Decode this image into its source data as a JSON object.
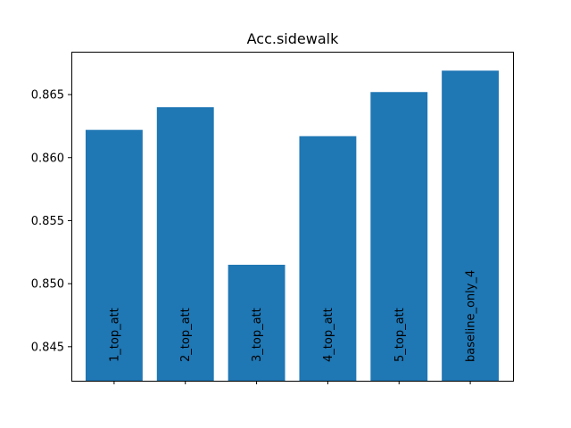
{
  "chart_data": {
    "type": "bar",
    "title": "Acc.sidewalk",
    "xlabel": "",
    "ylabel": "",
    "categories": [
      "1_top_att",
      "2_top_att",
      "3_top_att",
      "4_top_att",
      "5_top_att",
      "baseline_only_4"
    ],
    "values": [
      0.8622,
      0.864,
      0.8515,
      0.8617,
      0.8652,
      0.8669
    ],
    "ylim": [
      0.8423,
      0.8684
    ],
    "yticks": [
      0.845,
      0.85,
      0.855,
      0.86,
      0.865
    ],
    "ytick_labels": [
      "0.845",
      "0.850",
      "0.855",
      "0.860",
      "0.865"
    ],
    "bar_color": "#1f77b4",
    "grid": false,
    "legend": "none"
  }
}
